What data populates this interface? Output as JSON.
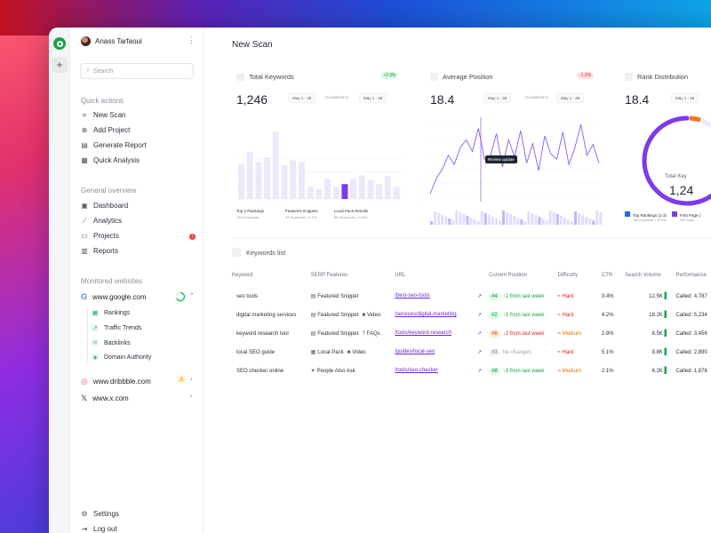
{
  "user": {
    "name": "Anass Tarfaoui"
  },
  "search": {
    "placeholder": "Search"
  },
  "quick_actions": {
    "title": "Quick actions",
    "items": [
      {
        "label": "New Scan",
        "icon": "scan-icon"
      },
      {
        "label": "Add Project",
        "icon": "plus-circle-icon"
      },
      {
        "label": "Generate Report",
        "icon": "document-icon"
      },
      {
        "label": "Quick Analysis",
        "icon": "grid-icon"
      }
    ]
  },
  "general_overview": {
    "title": "General overview",
    "items": [
      {
        "label": "Dashboard",
        "icon": "dashboard-icon"
      },
      {
        "label": "Analytics",
        "icon": "analytics-icon"
      },
      {
        "label": "Projects",
        "icon": "folder-icon",
        "badge": "!"
      },
      {
        "label": "Reports",
        "icon": "report-icon"
      }
    ]
  },
  "monitored": {
    "title": "Monitored websites",
    "sites": [
      {
        "name": "www.google.com",
        "sub": [
          "Rankings",
          "Traffic Trends",
          "Backlinks",
          "Domain Authority"
        ]
      },
      {
        "name": "www.dribbble.com"
      },
      {
        "name": "www.x.com"
      }
    ]
  },
  "footer": {
    "settings": "Settings",
    "logout": "Log out"
  },
  "page": {
    "title": "New Scan"
  },
  "cards": {
    "total_keywords": {
      "title": "Total Keywords",
      "delta": "+3.3%",
      "value": "1,246",
      "date1": "May 1 - 28",
      "compared": "Compared to",
      "date2": "May 1 - 28",
      "legend": [
        {
          "label": "Top 3 Rankings",
          "sub": "198 Keywords",
          "pct": "..."
        },
        {
          "label": "Featured Snippets",
          "sub": "34 Keywords",
          "pct": "5.2%"
        },
        {
          "label": "Local Pack Results",
          "sub": "89 Keywords",
          "pct": "13.8%"
        }
      ]
    },
    "average_position": {
      "title": "Average Position",
      "delta": "-1.2%",
      "value": "18.4",
      "date1": "May 1 - 28",
      "compared": "Compared to",
      "date2": "May 1 - 28",
      "tooltip": "Review update"
    },
    "rank_distribution": {
      "title": "Rank Distribution",
      "value": "18.4",
      "date1": "May 1 - 28",
      "center_label": "Total Key",
      "center_value": "1,24",
      "legend": [
        {
          "label": "Top Rankings (1-3)",
          "sub": "156 Keywords • 12.5%"
        },
        {
          "label": "First Page (",
          "sub": "284 Keyw"
        }
      ]
    }
  },
  "keywords": {
    "title": "Keywords list",
    "headers": [
      "Keyword",
      "SERP Features",
      "URL",
      "Current Position",
      "Difficulty",
      "CTR",
      "Search Volume",
      "Performance"
    ],
    "rows": [
      {
        "keyword": "seo tools",
        "serp": [
          {
            "icon": "snippet-icon",
            "label": "Featured Snippet"
          }
        ],
        "url": "/best-seo-tools",
        "pos": "#4",
        "pos_class": "g",
        "change": "↑2 from last week",
        "chg_class": "up",
        "difficulty": "Hard",
        "diff_class": "hard",
        "ctr": "3.4%",
        "volume": "12.5K",
        "perf": "Called: 4,787"
      },
      {
        "keyword": "digital marketing services",
        "serp": [
          {
            "icon": "snippet-icon",
            "label": "Featured Snippet"
          },
          {
            "icon": "video-icon",
            "label": "Video"
          }
        ],
        "url": "/services/digital-marketing",
        "pos": "#2",
        "pos_class": "g",
        "change": "↑1 from last week",
        "chg_class": "up",
        "difficulty": "Hard",
        "diff_class": "hard",
        "ctr": "4.2%",
        "volume": "18.2K",
        "perf": "Called: 5,234"
      },
      {
        "keyword": "keyword research tool",
        "serp": [
          {
            "icon": "snippet-icon",
            "label": "Featured Snippet"
          },
          {
            "icon": "faq-icon",
            "label": "FAQs"
          }
        ],
        "url": "/tools/keyword-research",
        "pos": "#6",
        "pos_class": "o",
        "change": "↓2 from last week",
        "chg_class": "dn",
        "difficulty": "Medium",
        "diff_class": "med",
        "ctr": "2.8%",
        "volume": "8.5K",
        "perf": "Called: 3,456"
      },
      {
        "keyword": "local SEO guide",
        "serp": [
          {
            "icon": "local-pack-icon",
            "label": "Local Pack"
          },
          {
            "icon": "video-icon",
            "label": "Video"
          }
        ],
        "url": "/guides/local-seo",
        "pos": "#3",
        "pos_class": "n",
        "change": "No changes",
        "chg_class": "nc",
        "difficulty": "Hard",
        "diff_class": "hard",
        "ctr": "5.1%",
        "volume": "9.8K",
        "perf": "Called: 2,890"
      },
      {
        "keyword": "SEO checker online",
        "serp": [
          {
            "icon": "people-ask-icon",
            "label": "People Also Ask"
          }
        ],
        "url": "/tools/seo-checker",
        "pos": "#8",
        "pos_class": "g",
        "change": "↑3 from last week",
        "chg_class": "up",
        "difficulty": "Medium",
        "diff_class": "med",
        "ctr": "2.1%",
        "volume": "6.2K",
        "perf": "Called: 1,876"
      }
    ]
  },
  "chart_data": [
    {
      "type": "bar",
      "title": "Total Keywords",
      "values": [
        52,
        70,
        55,
        62,
        100,
        50,
        57,
        55,
        18,
        15,
        30,
        18,
        22,
        30,
        35,
        28,
        22,
        34,
        18
      ],
      "highlight_index": 12,
      "ylim": [
        0,
        100
      ]
    },
    {
      "type": "line",
      "title": "Average Position",
      "values": [
        10,
        30,
        42,
        60,
        48,
        70,
        80,
        65,
        95,
        55,
        60,
        88,
        45,
        80,
        58,
        92,
        50,
        75,
        40,
        85,
        62,
        55,
        90,
        48,
        70,
        100,
        60,
        74,
        50
      ],
      "ylim": [
        0,
        100
      ]
    }
  ],
  "colors": {
    "accent": "#7c3aed",
    "bar_light": "#ece8fb",
    "green": "#16a34a"
  }
}
